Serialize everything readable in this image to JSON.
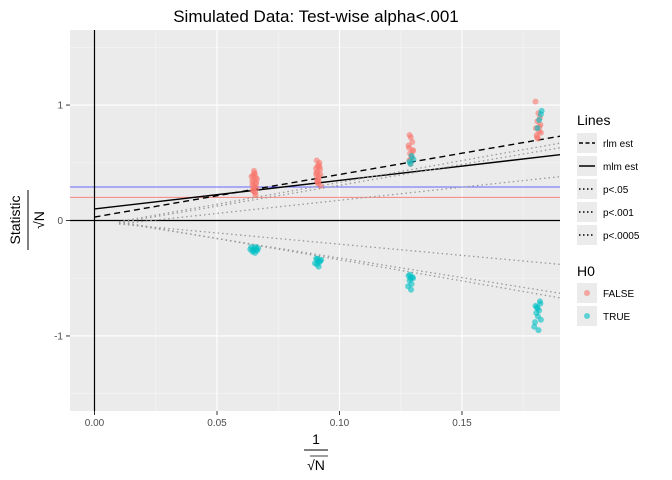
{
  "chart_data": {
    "type": "scatter",
    "title": "Simulated Data: Test-wise alpha<.001",
    "xlabel": {
      "numerator": "1",
      "denominator": "√N"
    },
    "ylabel": {
      "numerator": "Statistic",
      "denominator": "√N"
    },
    "xlim": [
      -0.01,
      0.19
    ],
    "ylim": [
      -1.65,
      1.65
    ],
    "x_ticks": [
      0,
      0.05,
      0.1,
      0.15
    ],
    "x_tick_labels": [
      "0.00",
      "0.05",
      "0.10",
      "0.15"
    ],
    "y_ticks": [
      -1,
      0,
      1
    ],
    "y_tick_labels": [
      "-1",
      "0",
      "1"
    ],
    "grid": true,
    "legend_placement": "right",
    "reference_lines": {
      "hline_zero": 0,
      "vline_zero": 0,
      "hline_blue": {
        "y": 0.29,
        "color": "#6666ff"
      },
      "hline_red": {
        "y": 0.2,
        "color": "#f4897f"
      }
    },
    "lines_legend": {
      "title": "Lines",
      "items": [
        {
          "label": "rlm est",
          "style": "dashed"
        },
        {
          "label": "mlm est",
          "style": "solid"
        },
        {
          "label": "p<.05",
          "style": "dotted"
        },
        {
          "label": "p<.001",
          "style": "dotted"
        },
        {
          "label": "p<.0005",
          "style": "dotted"
        }
      ]
    },
    "lines": [
      {
        "name": "rlm est",
        "style": "dashed",
        "color": "#000000",
        "x": [
          0,
          0.19
        ],
        "y": [
          0.03,
          0.73
        ]
      },
      {
        "name": "mlm est",
        "style": "solid",
        "color": "#000000",
        "x": [
          0,
          0.19
        ],
        "y": [
          0.1,
          0.57
        ]
      },
      {
        "name": "p<.05",
        "style": "dotted",
        "color": "#999999",
        "x": [
          0.01,
          0.19
        ],
        "y": [
          -0.03,
          0.38
        ]
      },
      {
        "name": "p<.05",
        "style": "dotted",
        "color": "#999999",
        "x": [
          0.01,
          0.19
        ],
        "y": [
          -0.03,
          -0.38
        ]
      },
      {
        "name": "p<.001",
        "style": "dotted",
        "color": "#999999",
        "x": [
          0.01,
          0.19
        ],
        "y": [
          -0.02,
          0.63
        ]
      },
      {
        "name": "p<.001",
        "style": "dotted",
        "color": "#999999",
        "x": [
          0.01,
          0.19
        ],
        "y": [
          -0.02,
          -0.63
        ]
      },
      {
        "name": "p<.0005",
        "style": "dotted",
        "color": "#999999",
        "x": [
          0.01,
          0.19
        ],
        "y": [
          -0.01,
          0.67
        ]
      },
      {
        "name": "p<.0005",
        "style": "dotted",
        "color": "#999999",
        "x": [
          0.01,
          0.19
        ],
        "y": [
          -0.01,
          -0.67
        ]
      }
    ],
    "points_legend": {
      "title": "H0",
      "items": [
        {
          "label": "FALSE",
          "color": "#f8766d"
        },
        {
          "label": "TRUE",
          "color": "#00bfc4"
        }
      ]
    },
    "series": [
      {
        "name": "FALSE",
        "color": "#f8766d",
        "points": [
          [
            0.0652,
            0.25
          ],
          [
            0.0648,
            0.27
          ],
          [
            0.0655,
            0.29
          ],
          [
            0.0645,
            0.31
          ],
          [
            0.066,
            0.33
          ],
          [
            0.065,
            0.35
          ],
          [
            0.0658,
            0.37
          ],
          [
            0.0647,
            0.39
          ],
          [
            0.0653,
            0.41
          ],
          [
            0.0662,
            0.28
          ],
          [
            0.0644,
            0.34
          ],
          [
            0.0651,
            0.43
          ],
          [
            0.0656,
            0.24
          ],
          [
            0.0649,
            0.3
          ],
          [
            0.0663,
            0.36
          ],
          [
            0.0646,
            0.26
          ],
          [
            0.0659,
            0.32
          ],
          [
            0.0654,
            0.4
          ],
          [
            0.0641,
            0.38
          ],
          [
            0.0657,
            0.22
          ],
          [
            0.0912,
            0.32
          ],
          [
            0.0908,
            0.35
          ],
          [
            0.0915,
            0.38
          ],
          [
            0.0905,
            0.41
          ],
          [
            0.092,
            0.44
          ],
          [
            0.091,
            0.47
          ],
          [
            0.0918,
            0.5
          ],
          [
            0.0907,
            0.52
          ],
          [
            0.0913,
            0.36
          ],
          [
            0.0922,
            0.4
          ],
          [
            0.0904,
            0.45
          ],
          [
            0.0911,
            0.33
          ],
          [
            0.0916,
            0.48
          ],
          [
            0.0909,
            0.42
          ],
          [
            0.0923,
            0.3
          ],
          [
            0.0906,
            0.39
          ],
          [
            0.0919,
            0.46
          ],
          [
            0.0914,
            0.34
          ],
          [
            0.129,
            0.49
          ],
          [
            0.1285,
            0.52
          ],
          [
            0.1295,
            0.55
          ],
          [
            0.1288,
            0.58
          ],
          [
            0.13,
            0.61
          ],
          [
            0.1282,
            0.65
          ],
          [
            0.1297,
            0.68
          ],
          [
            0.1291,
            0.72
          ],
          [
            0.1286,
            0.74
          ],
          [
            0.1293,
            0.54
          ],
          [
            0.1299,
            0.6
          ],
          [
            0.1284,
            0.63
          ],
          [
            0.181,
            0.71
          ],
          [
            0.1805,
            0.74
          ],
          [
            0.1815,
            0.77
          ],
          [
            0.1802,
            0.8
          ],
          [
            0.182,
            0.83
          ],
          [
            0.1808,
            0.86
          ],
          [
            0.1818,
            0.89
          ],
          [
            0.1812,
            0.93
          ],
          [
            0.18,
            1.03
          ],
          [
            0.1822,
            0.76
          ],
          [
            0.1816,
            0.81
          ],
          [
            0.1806,
            0.72
          ]
        ]
      },
      {
        "name": "TRUE",
        "color": "#00bfc4",
        "points": [
          [
            0.064,
            -0.23
          ],
          [
            0.0652,
            -0.24
          ],
          [
            0.066,
            -0.25
          ],
          [
            0.0648,
            -0.26
          ],
          [
            0.0668,
            -0.24
          ],
          [
            0.0645,
            -0.27
          ],
          [
            0.0658,
            -0.23
          ],
          [
            0.0636,
            -0.25
          ],
          [
            0.0664,
            -0.26
          ],
          [
            0.0655,
            -0.28
          ],
          [
            0.0905,
            -0.33
          ],
          [
            0.0912,
            -0.35
          ],
          [
            0.0918,
            -0.36
          ],
          [
            0.0908,
            -0.38
          ],
          [
            0.0925,
            -0.34
          ],
          [
            0.09,
            -0.37
          ],
          [
            0.0915,
            -0.4
          ],
          [
            0.0922,
            -0.35
          ],
          [
            0.091,
            -0.33
          ],
          [
            0.1282,
            -0.48
          ],
          [
            0.129,
            -0.5
          ],
          [
            0.1298,
            -0.49
          ],
          [
            0.1286,
            -0.52
          ],
          [
            0.1294,
            -0.55
          ],
          [
            0.128,
            -0.57
          ],
          [
            0.1292,
            -0.6
          ],
          [
            0.13,
            -0.5
          ],
          [
            0.1288,
            -0.47
          ],
          [
            0.18,
            -0.74
          ],
          [
            0.1808,
            -0.76
          ],
          [
            0.1815,
            -0.78
          ],
          [
            0.1803,
            -0.8
          ],
          [
            0.182,
            -0.72
          ],
          [
            0.181,
            -0.83
          ],
          [
            0.1795,
            -0.92
          ],
          [
            0.1812,
            -0.95
          ],
          [
            0.1822,
            -0.86
          ],
          [
            0.1806,
            -0.75
          ],
          [
            0.1818,
            -0.7
          ],
          [
            0.1798,
            -0.88
          ],
          [
            0.129,
            0.49
          ],
          [
            0.1302,
            0.53
          ],
          [
            0.1294,
            0.56
          ],
          [
            0.1286,
            0.51
          ],
          [
            0.1815,
            0.87
          ],
          [
            0.1822,
            0.92
          ],
          [
            0.1808,
            0.8
          ],
          [
            0.1825,
            0.95
          ]
        ]
      }
    ]
  }
}
